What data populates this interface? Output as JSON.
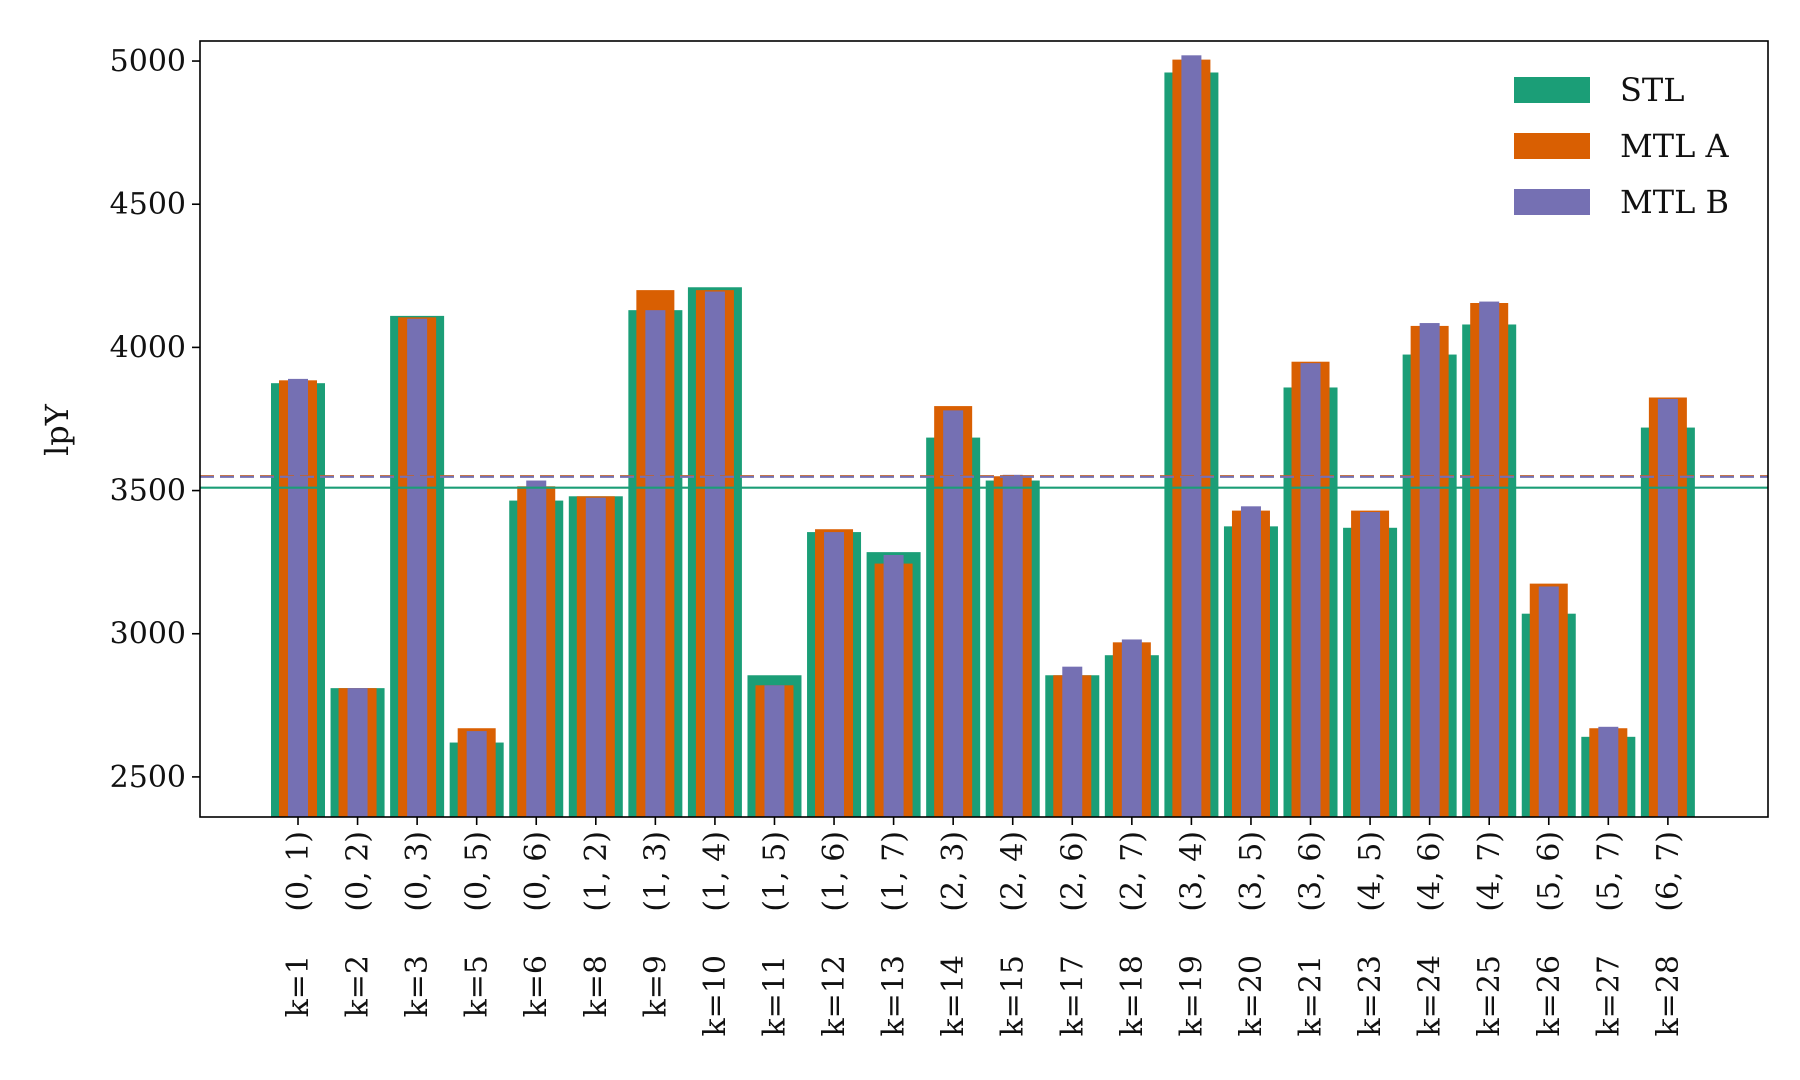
{
  "chart_data": {
    "type": "bar",
    "ylabel": "lpY",
    "ylim": [
      2360,
      5070
    ],
    "yticks": [
      2500,
      3000,
      3500,
      4000,
      4500,
      5000
    ],
    "categories": [
      "(0, 1)",
      "(0, 2)",
      "(0, 3)",
      "(0, 5)",
      "(0, 6)",
      "(1, 2)",
      "(1, 3)",
      "(1, 4)",
      "(1, 5)",
      "(1, 6)",
      "(1, 7)",
      "(2, 3)",
      "(2, 4)",
      "(2, 6)",
      "(2, 7)",
      "(3, 4)",
      "(3, 5)",
      "(3, 6)",
      "(4, 5)",
      "(4, 6)",
      "(4, 7)",
      "(5, 6)",
      "(5, 7)",
      "(6, 7)"
    ],
    "k_labels": [
      "k=1",
      "k=2",
      "k=3",
      "k=5",
      "k=6",
      "k=8",
      "k=9",
      "k=10",
      "k=11",
      "k=12",
      "k=13",
      "k=14",
      "k=15",
      "k=17",
      "k=18",
      "k=19",
      "k=20",
      "k=21",
      "k=23",
      "k=24",
      "k=25",
      "k=26",
      "k=27",
      "k=28"
    ],
    "series": [
      {
        "name": "STL",
        "color": "#1b9e77",
        "values": [
          3875,
          2810,
          4110,
          2620,
          3465,
          3480,
          4130,
          4210,
          2855,
          3355,
          3285,
          3685,
          3535,
          2855,
          2925,
          4960,
          3375,
          3860,
          3370,
          3975,
          4080,
          3070,
          2640,
          3720
        ]
      },
      {
        "name": "MTL A",
        "color": "#d95f02",
        "values": [
          3885,
          2810,
          4105,
          2670,
          3515,
          3480,
          4200,
          4200,
          2820,
          3365,
          3245,
          3795,
          3550,
          2855,
          2970,
          5005,
          3430,
          3950,
          3430,
          4075,
          4155,
          3175,
          2670,
          3825
        ]
      },
      {
        "name": "MTL B",
        "color": "#7570b3",
        "values": [
          3890,
          2810,
          4100,
          2660,
          3535,
          3475,
          4130,
          4195,
          2820,
          3355,
          3275,
          3780,
          3555,
          2885,
          2980,
          5020,
          3445,
          3945,
          3425,
          4085,
          4160,
          3165,
          2675,
          3820
        ]
      }
    ],
    "reference_lines": [
      {
        "series": "STL",
        "value": 3510,
        "style": "solid",
        "color": "#1b9e77"
      },
      {
        "series": "MTL A",
        "value": 3550,
        "style": "dashed",
        "color": "#d95f02"
      },
      {
        "series": "MTL B",
        "value": 3548,
        "style": "dashed",
        "color": "#7570b3"
      }
    ],
    "legend_position": "top-right",
    "grid": false
  }
}
